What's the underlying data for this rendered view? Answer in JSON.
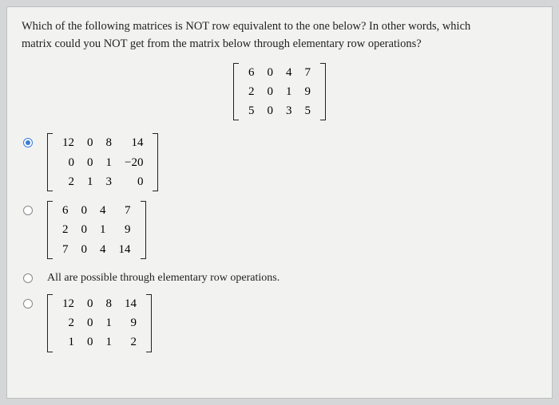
{
  "question_line1": "Which of the following matrices is NOT row equivalent to the one below? In other words, which",
  "question_line2": "matrix could you NOT get from the matrix below through elementary row operations?",
  "mainMatrix": [
    [
      "6",
      "0",
      "4",
      "7"
    ],
    [
      "2",
      "0",
      "1",
      "9"
    ],
    [
      "5",
      "0",
      "3",
      "5"
    ]
  ],
  "options": [
    {
      "type": "matrix",
      "selected": true,
      "rows": [
        [
          "12",
          "0",
          "8",
          "14"
        ],
        [
          "0",
          "0",
          "1",
          "−20"
        ],
        [
          "2",
          "1",
          "3",
          "0"
        ]
      ]
    },
    {
      "type": "matrix",
      "selected": false,
      "rows": [
        [
          "6",
          "0",
          "4",
          "7"
        ],
        [
          "2",
          "0",
          "1",
          "9"
        ],
        [
          "7",
          "0",
          "4",
          "14"
        ]
      ]
    },
    {
      "type": "text",
      "selected": false,
      "text": "All are possible through elementary row operations."
    },
    {
      "type": "matrix",
      "selected": false,
      "rows": [
        [
          "12",
          "0",
          "8",
          "14"
        ],
        [
          "2",
          "0",
          "1",
          "9"
        ],
        [
          "1",
          "0",
          "1",
          "2"
        ]
      ]
    }
  ]
}
